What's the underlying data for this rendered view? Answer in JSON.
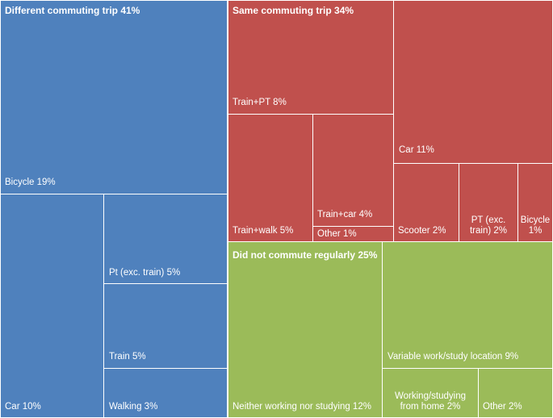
{
  "chart_data": {
    "type": "treemap",
    "groups": [
      {
        "name": "Different commuting trip 41%",
        "color": "#4f81bd",
        "items": [
          {
            "label": "Bicycle 19%",
            "value": 19
          },
          {
            "label": "Car 10%",
            "value": 10
          },
          {
            "label": "Pt (exc. train) 5%",
            "value": 5
          },
          {
            "label": "Train 5%",
            "value": 5
          },
          {
            "label": "Walking 3%",
            "value": 3
          }
        ]
      },
      {
        "name": "Same commuting trip 34%",
        "color": "#c0504d",
        "items": [
          {
            "label": "Train+PT 8%",
            "value": 8
          },
          {
            "label": "Car 11%",
            "value": 11
          },
          {
            "label": "Train+walk 5%",
            "value": 5
          },
          {
            "label": "Train+car 4%",
            "value": 4
          },
          {
            "label": "Other 1%",
            "value": 1
          },
          {
            "label": "Scooter 2%",
            "value": 2
          },
          {
            "label": "PT (exc. train) 2%",
            "value": 2
          },
          {
            "label": "Bicycle 1%",
            "value": 1
          }
        ]
      },
      {
        "name": "Did not commute regularly 25%",
        "color": "#9bbb59",
        "items": [
          {
            "label": "Neither working nor studying 12%",
            "value": 12
          },
          {
            "label": "Variable work/study location 9%",
            "value": 9
          },
          {
            "label": "Working/studying from home 2%",
            "value": 2
          },
          {
            "label": "Other 2%",
            "value": 2
          }
        ]
      }
    ]
  }
}
